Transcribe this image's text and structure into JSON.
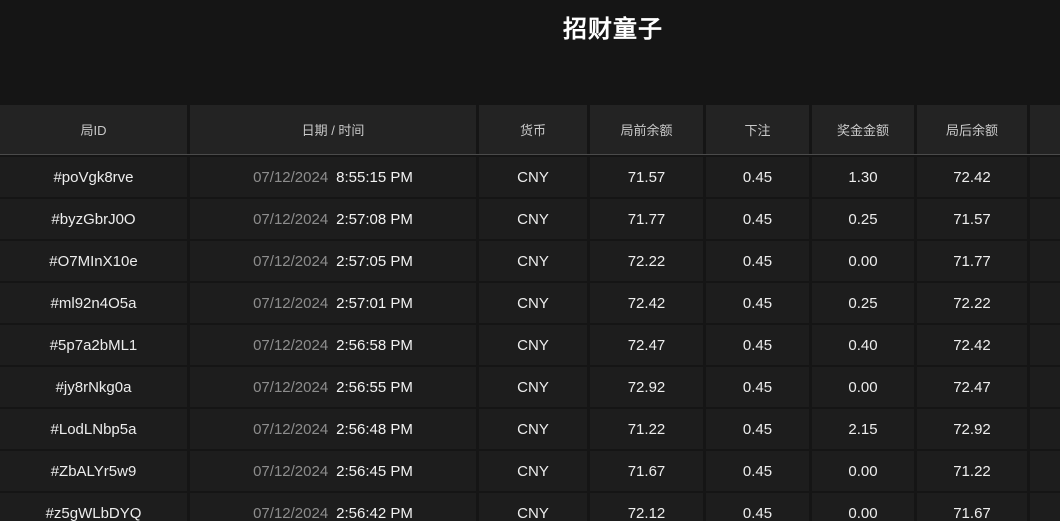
{
  "page": {
    "title": "招财童子"
  },
  "colors": {
    "page_bg": "#151515",
    "header_bg": "#232323",
    "row_bg": "#1d1d1d",
    "header_text": "#c9c9c9",
    "body_text": "#ededed",
    "date_text": "#8d8d8d",
    "header_underline": "#4b4b4b"
  },
  "table": {
    "columns": [
      "局ID",
      "日期 / 时间",
      "货币",
      "局前余额",
      "下注",
      "奖金金额",
      "局后余额",
      ""
    ],
    "rows": [
      {
        "id": "#poVgk8rve",
        "date": "07/12/2024",
        "time": "8:55:15 PM",
        "currency": "CNY",
        "balance_before": "71.57",
        "bet": "0.45",
        "win": "1.30",
        "balance_after": "72.42",
        "extra": ""
      },
      {
        "id": "#byzGbrJ0O",
        "date": "07/12/2024",
        "time": "2:57:08 PM",
        "currency": "CNY",
        "balance_before": "71.77",
        "bet": "0.45",
        "win": "0.25",
        "balance_after": "71.57",
        "extra": ""
      },
      {
        "id": "#O7MInX10e",
        "date": "07/12/2024",
        "time": "2:57:05 PM",
        "currency": "CNY",
        "balance_before": "72.22",
        "bet": "0.45",
        "win": "0.00",
        "balance_after": "71.77",
        "extra": ""
      },
      {
        "id": "#ml92n4O5a",
        "date": "07/12/2024",
        "time": "2:57:01 PM",
        "currency": "CNY",
        "balance_before": "72.42",
        "bet": "0.45",
        "win": "0.25",
        "balance_after": "72.22",
        "extra": ""
      },
      {
        "id": "#5p7a2bML1",
        "date": "07/12/2024",
        "time": "2:56:58 PM",
        "currency": "CNY",
        "balance_before": "72.47",
        "bet": "0.45",
        "win": "0.40",
        "balance_after": "72.42",
        "extra": ""
      },
      {
        "id": "#jy8rNkg0a",
        "date": "07/12/2024",
        "time": "2:56:55 PM",
        "currency": "CNY",
        "balance_before": "72.92",
        "bet": "0.45",
        "win": "0.00",
        "balance_after": "72.47",
        "extra": ""
      },
      {
        "id": "#LodLNbp5a",
        "date": "07/12/2024",
        "time": "2:56:48 PM",
        "currency": "CNY",
        "balance_before": "71.22",
        "bet": "0.45",
        "win": "2.15",
        "balance_after": "72.92",
        "extra": ""
      },
      {
        "id": "#ZbALYr5w9",
        "date": "07/12/2024",
        "time": "2:56:45 PM",
        "currency": "CNY",
        "balance_before": "71.67",
        "bet": "0.45",
        "win": "0.00",
        "balance_after": "71.22",
        "extra": ""
      },
      {
        "id": "#z5gWLbDYQ",
        "date": "07/12/2024",
        "time": "2:56:42 PM",
        "currency": "CNY",
        "balance_before": "72.12",
        "bet": "0.45",
        "win": "0.00",
        "balance_after": "71.67",
        "extra": ""
      }
    ]
  }
}
